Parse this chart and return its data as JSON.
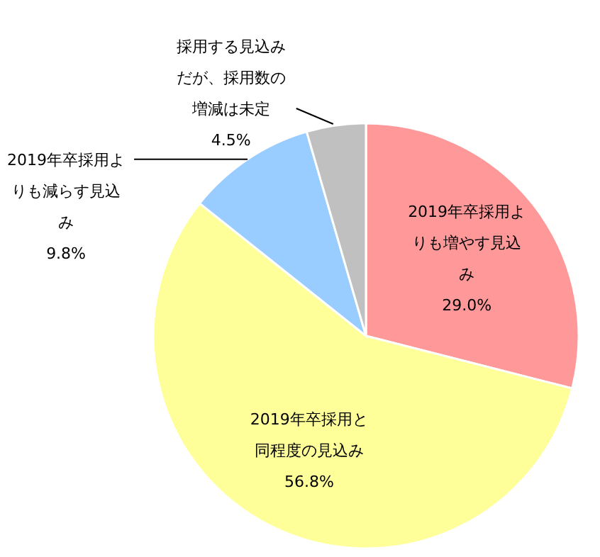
{
  "chart_data": {
    "type": "pie",
    "categories": [
      "2019年卒採用よりも増やす見込み",
      "2019年卒採用と同程度の見込み",
      "2019年卒採用よりも減らす見込み",
      "採用する見込みだが、採用数の増減は未定"
    ],
    "values": [
      29.0,
      56.8,
      9.8,
      4.5
    ],
    "colors": [
      "#ff9999",
      "#ffff99",
      "#99ccff",
      "#c0c0c0"
    ],
    "value_labels": [
      "29.0%",
      "56.8%",
      "9.8%",
      "4.5%"
    ],
    "legend": false
  }
}
